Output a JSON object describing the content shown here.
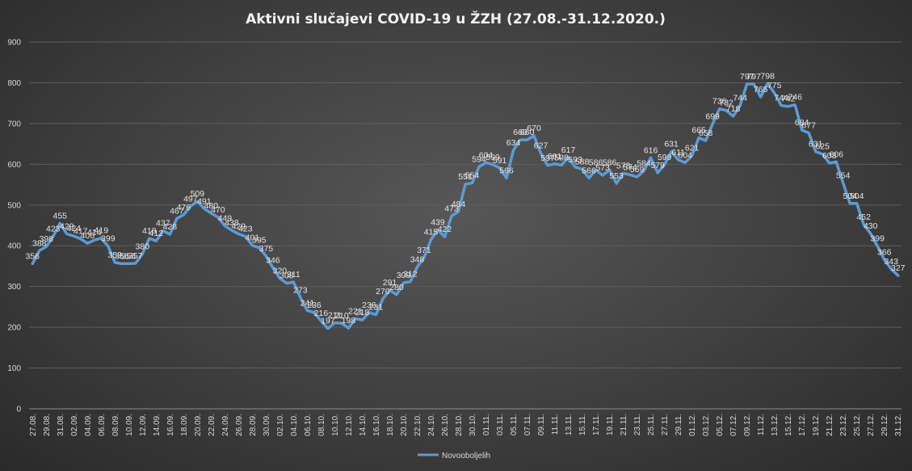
{
  "chart_data": {
    "type": "line",
    "title": "Aktivni  slučajevi  COVID-19  u  ŽZH  (27.08.-31.12.2020.)",
    "xlabel": "",
    "ylabel": "",
    "ylim": [
      0,
      900
    ],
    "yticks": [
      "0",
      "100",
      "200",
      "300",
      "400",
      "500",
      "600",
      "700",
      "800",
      "900"
    ],
    "grid": true,
    "legend_position": "bottom",
    "x_tick_labels": [
      "27.08.",
      "29.08.",
      "31.08.",
      "02.09.",
      "04.09.",
      "06.09.",
      "08.09.",
      "10.09.",
      "12.09.",
      "14.09.",
      "16.09.",
      "18.09.",
      "20.09.",
      "22.09.",
      "24.09.",
      "26.09.",
      "28.09.",
      "30.09.",
      "02.10.",
      "04.10.",
      "06.10.",
      "08.10.",
      "10.10.",
      "12.10.",
      "14.10.",
      "16.10.",
      "18.10.",
      "20.10.",
      "22.10.",
      "24.10.",
      "26.10.",
      "28.10.",
      "30.10.",
      "01.11.",
      "03.11.",
      "05.11.",
      "07.11.",
      "09.11.",
      "11.11.",
      "13.11.",
      "15.11.",
      "17.11.",
      "19.11.",
      "21.11.",
      "23.11.",
      "25.11.",
      "27.11.",
      "29.11.",
      "01.12.",
      "03.12.",
      "05.12.",
      "07.12.",
      "09.12.",
      "11.12.",
      "13.12.",
      "15.12.",
      "17.12.",
      "19.12.",
      "21.12.",
      "23.12.",
      "25.12.",
      "27.12.",
      "29.12.",
      "31.12."
    ],
    "series": [
      {
        "name": "Novooboljelih",
        "color": "#5b9bd5",
        "values": [
          356,
          388,
          398,
          423,
          455,
          429,
          424,
          417,
          406,
          414,
          419,
          399,
          359,
          356,
          356,
          357,
          380,
          418,
          412,
          437,
          428,
          467,
          476,
          497,
          509,
          491,
          480,
          470,
          449,
          438,
          429,
          423,
          401,
          395,
          375,
          346,
          320,
          308,
          311,
          273,
          241,
          236,
          216,
          197,
          211,
          210,
          198,
          221,
          218,
          236,
          231,
          270,
          291,
          280,
          309,
          312,
          348,
          371,
          415,
          439,
          422,
          473,
          484,
          551,
          554,
          594,
          604,
          599,
          591,
          566,
          634,
          660,
          660,
          670,
          627,
          597,
          601,
          598,
          617,
          593,
          588,
          566,
          586,
          573,
          586,
          553,
          578,
          574,
          569,
          584,
          616,
          579,
          599,
          631,
          611,
          604,
          621,
          665,
          658,
          699,
          736,
          732,
          718,
          744,
          797,
          797,
          765,
          798,
          775,
          744,
          742,
          746,
          684,
          677,
          631,
          625,
          603,
          606,
          554,
          504,
          504,
          452,
          430,
          399,
          366,
          343,
          327
        ]
      }
    ]
  }
}
